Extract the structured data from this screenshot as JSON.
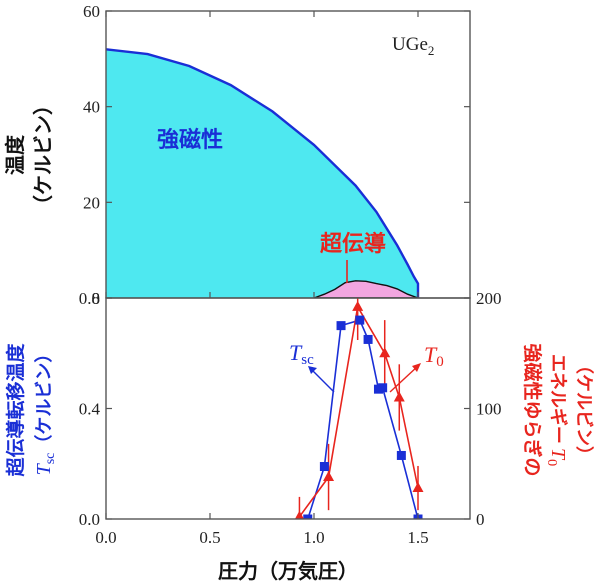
{
  "chart_data": [
    {
      "type": "area",
      "annotation": {
        "material": "UGe",
        "material_sub": "2",
        "ferro_label": "強磁性",
        "sc_label": "超伝導"
      },
      "ylabel_main": "温度",
      "ylabel_unit": "（ケルビン）",
      "xlim": [
        0.0,
        1.75
      ],
      "ylim": [
        0,
        60
      ],
      "y_ticks": [
        "0",
        "20",
        "40",
        "60"
      ],
      "ferro_boundary": {
        "x": [
          0.0,
          0.2,
          0.4,
          0.6,
          0.8,
          1.0,
          1.2,
          1.3,
          1.4,
          1.45,
          1.48,
          1.5,
          1.5
        ],
        "y": [
          52,
          51.0,
          48.5,
          44.5,
          39,
          32,
          23.5,
          18,
          11,
          7,
          4.5,
          3,
          0
        ]
      },
      "sc_dome": {
        "x": [
          1.0,
          1.05,
          1.1,
          1.15,
          1.2,
          1.25,
          1.3,
          1.35,
          1.4,
          1.45,
          1.5
        ],
        "y": [
          0,
          0.8,
          1.8,
          3.2,
          3.6,
          3.5,
          3.0,
          2.6,
          1.9,
          0.8,
          0
        ]
      },
      "colors": {
        "ferro_fill": "#4ee8f0",
        "ferro_line": "#1a2fd6",
        "sc_fill": "#f2a6e0",
        "sc_line": "#111111",
        "sc_label": "#e8251e"
      }
    },
    {
      "type": "line",
      "xlabel": "圧力（万気圧）",
      "xlim": [
        0.0,
        1.75
      ],
      "x_ticks": [
        "0.0",
        "0.5",
        "1.0",
        "1.5"
      ],
      "left_axis": {
        "label_line1": "超伝導転移温度",
        "label_line2_sym": "T",
        "label_line2_sub": "sc",
        "label_line2_unit": "（ケルビン）",
        "ylim": [
          0,
          0.8
        ],
        "ticks": [
          "0.0",
          "0.4",
          "0.8"
        ]
      },
      "right_axis": {
        "label_line1": "強磁性ゆらぎの",
        "label_line2": "エネルギー",
        "label_line2_sym": "T",
        "label_line2_sub": "0",
        "label_line3": "（ケルビン）",
        "ylim": [
          0,
          200
        ],
        "ticks": [
          "0",
          "100",
          "200"
        ]
      },
      "series": [
        {
          "name": "T",
          "name_sub": "sc",
          "axis": "left",
          "color": "#1a2fd6",
          "marker": "square",
          "x": [
            0.97,
            1.05,
            1.13,
            1.22,
            1.26,
            1.31,
            1.33,
            1.42,
            1.5
          ],
          "y": [
            0.0,
            0.19,
            0.7,
            0.72,
            0.65,
            0.47,
            0.475,
            0.23,
            0.0
          ]
        },
        {
          "name": "T",
          "name_sub": "0",
          "axis": "right",
          "color": "#e8251e",
          "marker": "triangle",
          "x": [
            0.93,
            1.07,
            1.21,
            1.34,
            1.41,
            1.5
          ],
          "y": [
            2,
            38,
            192,
            150,
            110,
            28
          ],
          "err": [
            18,
            30,
            30,
            30,
            30,
            20
          ]
        }
      ]
    }
  ]
}
